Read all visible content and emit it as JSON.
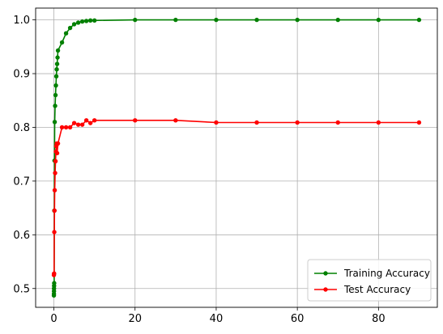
{
  "chart_data": {
    "type": "line",
    "title": "",
    "xlabel": "",
    "ylabel": "",
    "xlim": [
      -4.5,
      94.5
    ],
    "ylim": [
      0.465,
      1.022
    ],
    "xticks": [
      0,
      20,
      40,
      60,
      80
    ],
    "yticks": [
      0.5,
      0.6,
      0.7,
      0.8,
      0.9,
      1.0
    ],
    "xtick_labels": [
      "0",
      "20",
      "40",
      "60",
      "80"
    ],
    "ytick_labels": [
      "0.5",
      "0.6",
      "0.7",
      "0.8",
      "0.9",
      "1.0"
    ],
    "grid": true,
    "legend_position": "lower-right",
    "series": [
      {
        "name": "Training Accuracy",
        "color": "#008000",
        "marker": "circle",
        "x": [
          0,
          0.01,
          0.02,
          0.03,
          0.05,
          0.07,
          0.1,
          0.15,
          0.2,
          0.3,
          0.4,
          0.5,
          0.6,
          0.7,
          0.8,
          0.9,
          1,
          2,
          3,
          4,
          5,
          6,
          7,
          8,
          9,
          10,
          20,
          30,
          40,
          50,
          60,
          70,
          80,
          90
        ],
        "values": [
          0.487,
          0.49,
          0.495,
          0.5,
          0.505,
          0.51,
          0.645,
          0.738,
          0.81,
          0.84,
          0.86,
          0.878,
          0.895,
          0.908,
          0.918,
          0.93,
          0.943,
          0.958,
          0.975,
          0.985,
          0.992,
          0.995,
          0.997,
          0.998,
          0.999,
          0.999,
          1.0,
          1.0,
          1.0,
          1.0,
          1.0,
          1.0,
          1.0,
          1.0
        ]
      },
      {
        "name": "Test Accuracy",
        "color": "#ff0000",
        "marker": "circle",
        "x": [
          0,
          0.02,
          0.05,
          0.1,
          0.15,
          0.2,
          0.3,
          0.4,
          0.5,
          0.6,
          0.7,
          0.8,
          1,
          2,
          3,
          4,
          5,
          6,
          7,
          8,
          9,
          10,
          20,
          30,
          40,
          50,
          60,
          70,
          80,
          90
        ],
        "values": [
          0.525,
          0.527,
          0.528,
          0.605,
          0.645,
          0.683,
          0.715,
          0.737,
          0.755,
          0.765,
          0.77,
          0.752,
          0.77,
          0.8,
          0.8,
          0.8,
          0.808,
          0.805,
          0.805,
          0.813,
          0.808,
          0.813,
          0.813,
          0.813,
          0.809,
          0.809,
          0.809,
          0.809,
          0.809,
          0.809
        ]
      }
    ]
  }
}
